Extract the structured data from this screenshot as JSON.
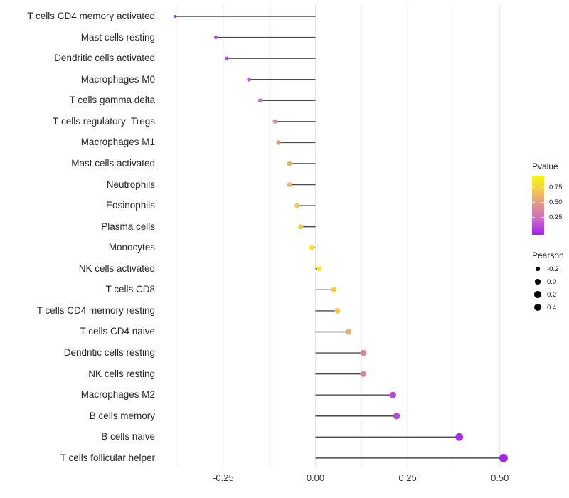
{
  "chart_data": {
    "type": "scatter",
    "subtype": "lollipop",
    "title": "",
    "xlabel": "",
    "ylabel": "",
    "grid": "vertical major and minor gridlines, no axis lines, white background",
    "xlim": [
      -0.43,
      0.56
    ],
    "x_axis": {
      "ticks": [
        {
          "value": -0.25,
          "label": "-0.25"
        },
        {
          "value": 0.0,
          "label": "0.00"
        },
        {
          "value": 0.25,
          "label": "0.25"
        },
        {
          "value": 0.5,
          "label": "0.50"
        }
      ],
      "minor_gridlines": [
        -0.375,
        -0.125,
        0.125,
        0.375
      ]
    },
    "rows": [
      {
        "label": "T cells CD4 memory activated",
        "pearson": -0.38,
        "pvalue": 0.04
      },
      {
        "label": "Mast cells resting",
        "pearson": -0.27,
        "pvalue": 0.08
      },
      {
        "label": "Dendritic cells activated",
        "pearson": -0.24,
        "pvalue": 0.11
      },
      {
        "label": "Macrophages M0",
        "pearson": -0.18,
        "pvalue": 0.19
      },
      {
        "label": "T cells gamma delta",
        "pearson": -0.15,
        "pvalue": 0.3
      },
      {
        "label": "T cells regulatory  Tregs",
        "pearson": -0.11,
        "pvalue": 0.48
      },
      {
        "label": "Macrophages M1",
        "pearson": -0.1,
        "pvalue": 0.54
      },
      {
        "label": "Mast cells activated",
        "pearson": -0.07,
        "pvalue": 0.62
      },
      {
        "label": "Neutrophils",
        "pearson": -0.07,
        "pvalue": 0.63
      },
      {
        "label": "Eosinophils",
        "pearson": -0.05,
        "pvalue": 0.74
      },
      {
        "label": "Plasma cells",
        "pearson": -0.04,
        "pvalue": 0.76
      },
      {
        "label": "Monocytes",
        "pearson": -0.01,
        "pvalue": 0.93
      },
      {
        "label": "NK cells activated",
        "pearson": 0.01,
        "pvalue": 0.96
      },
      {
        "label": "T cells CD8",
        "pearson": 0.05,
        "pvalue": 0.77
      },
      {
        "label": "T cells CD4 memory resting",
        "pearson": 0.06,
        "pvalue": 0.76
      },
      {
        "label": "T cells CD4 naive",
        "pearson": 0.09,
        "pvalue": 0.62
      },
      {
        "label": "Dendritic cells resting",
        "pearson": 0.13,
        "pvalue": 0.42
      },
      {
        "label": "NK cells resting",
        "pearson": 0.13,
        "pvalue": 0.42
      },
      {
        "label": "Macrophages M2",
        "pearson": 0.21,
        "pvalue": 0.15
      },
      {
        "label": "B cells memory",
        "pearson": 0.22,
        "pvalue": 0.14
      },
      {
        "label": "B cells naive",
        "pearson": 0.39,
        "pvalue": 0.05
      },
      {
        "label": "T cells follicular helper",
        "pearson": 0.51,
        "pvalue": 0.01
      }
    ],
    "legends": {
      "pvalue": {
        "title": "Pvalue",
        "ticks": [
          {
            "label": "0.75",
            "frac_from_top": 0.2
          },
          {
            "label": "0.50",
            "frac_from_top": 0.45
          },
          {
            "label": "0.25",
            "frac_from_top": 0.7
          }
        ],
        "gradient_stops": [
          {
            "p": 0.0,
            "color": "#A020F0"
          },
          {
            "p": 0.25,
            "color": "#C868C6"
          },
          {
            "p": 0.5,
            "color": "#DD9491"
          },
          {
            "p": 0.75,
            "color": "#F0C950"
          },
          {
            "p": 1.0,
            "color": "#FAF60A"
          }
        ]
      },
      "pearson": {
        "title": "Pearson",
        "entries": [
          {
            "value": -0.2,
            "label": "-0.2"
          },
          {
            "value": 0.0,
            "label": "0.0"
          },
          {
            "value": 0.2,
            "label": "0.2"
          },
          {
            "value": 0.4,
            "label": "0.4"
          }
        ]
      }
    },
    "colors": {
      "stem": "#4a4a4a",
      "major_gridline": "#e6e6e6",
      "minor_gridline": "#f3f3f3",
      "axis_text": "#333333",
      "label_text": "#262626"
    }
  }
}
